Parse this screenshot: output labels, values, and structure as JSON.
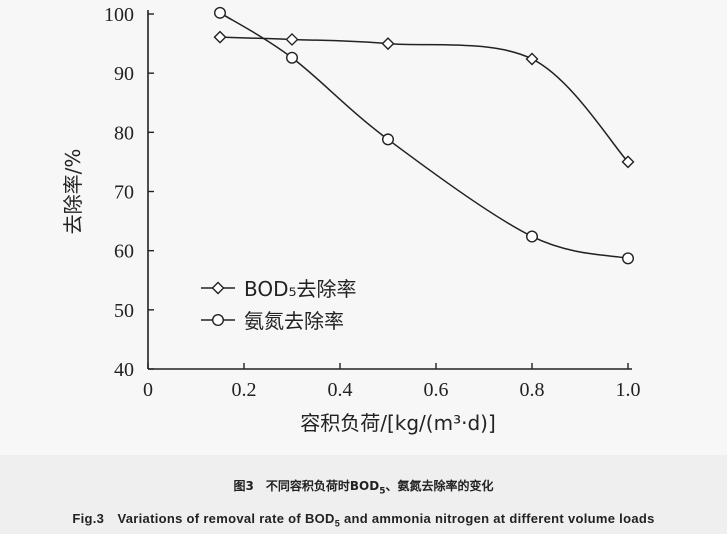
{
  "chart_data": {
    "type": "line",
    "title": "",
    "xlabel": "容积负荷/[kg/(m³·d)]",
    "ylabel": "去除率/%",
    "xlim": [
      0,
      1.0
    ],
    "ylim": [
      40,
      100
    ],
    "x_ticks": [
      "0",
      "0.2",
      "0.4",
      "0.6",
      "0.8",
      "1.0"
    ],
    "y_ticks": [
      "40",
      "50",
      "60",
      "70",
      "80",
      "90",
      "100"
    ],
    "grid": false,
    "legend_position": "center-left",
    "series": [
      {
        "name": "BOD₅去除率",
        "marker": "diamond",
        "x": [
          0.15,
          0.3,
          0.5,
          0.8,
          1.0
        ],
        "values": [
          96.1,
          95.7,
          95.0,
          92.4,
          75.0
        ]
      },
      {
        "name": "氨氮去除率",
        "marker": "circle",
        "x": [
          0.15,
          0.3,
          0.5,
          0.8,
          1.0
        ],
        "values": [
          100.2,
          92.6,
          78.8,
          62.4,
          58.7
        ]
      }
    ]
  },
  "caption": {
    "cn_prefix": "图3　不同容积负荷时BOD",
    "cn_sub": "5",
    "cn_suffix": "、氨氮去除率的变化",
    "en_prefix": "Fig.3　Variations of removal rate of BOD",
    "en_sub": "5",
    "en_suffix": " and ammonia nitrogen at different volume loads"
  }
}
